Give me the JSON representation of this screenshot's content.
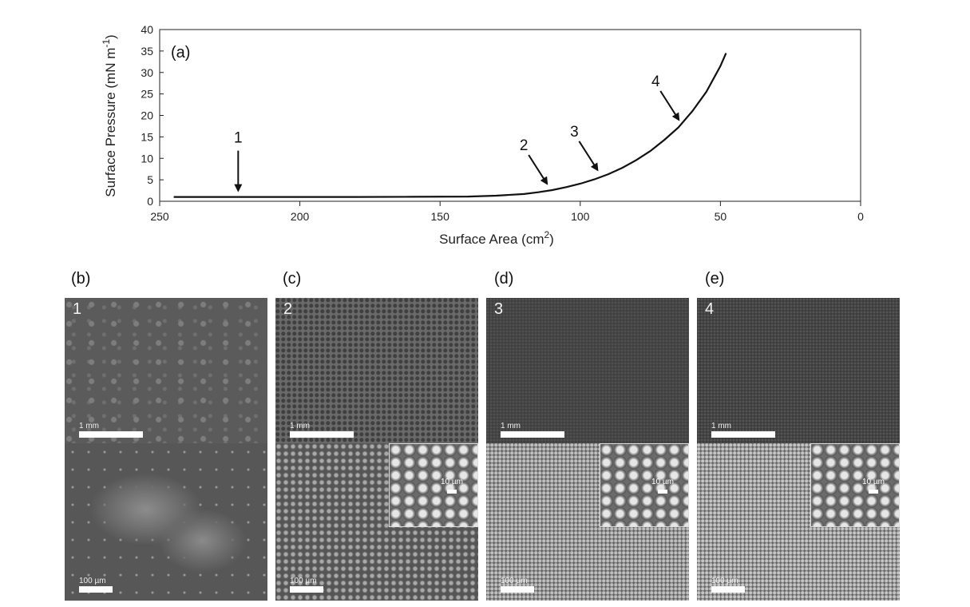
{
  "chart_data": {
    "type": "line",
    "panel_label": "(a)",
    "xlabel": "Surface Area (cm²)",
    "xlabel_base": "Surface Area (cm",
    "xlabel_sup": "2",
    "xlabel_end": ")",
    "ylabel": "Surface Pressure (mN m⁻¹)",
    "ylabel_base": "Surface Pressure  (mN m",
    "ylabel_sup": "-1",
    "ylabel_end": ")",
    "xlim": [
      250,
      0
    ],
    "ylim": [
      0,
      40
    ],
    "x_ticks": [
      250,
      200,
      150,
      100,
      50,
      0
    ],
    "y_ticks": [
      0,
      5,
      10,
      15,
      20,
      25,
      30,
      35,
      40
    ],
    "grid": false,
    "series": [
      {
        "x": [
          245,
          220,
          200,
          180,
          160,
          140,
          130,
          120,
          115,
          110,
          105,
          100,
          95,
          90,
          85,
          80,
          75,
          70,
          65,
          60,
          55,
          50,
          48
        ],
        "y": [
          1.0,
          1.0,
          1.0,
          1.0,
          1.05,
          1.1,
          1.3,
          1.7,
          2.1,
          2.6,
          3.3,
          4.1,
          5.1,
          6.3,
          7.8,
          9.6,
          11.7,
          14.3,
          17.2,
          21.0,
          25.5,
          31.5,
          34.5
        ]
      }
    ],
    "annotations": [
      {
        "label": "1",
        "x": 222,
        "y": 1.0
      },
      {
        "label": "2",
        "x": 111,
        "y": 2.6
      },
      {
        "label": "3",
        "x": 93,
        "y": 5.8
      },
      {
        "label": "4",
        "x": 64,
        "y": 17.5
      }
    ]
  },
  "panels": [
    {
      "letter": "(b)",
      "number": "1",
      "top_scale": "1 mm",
      "bottom_scale": "100 µm",
      "inset_scale": ""
    },
    {
      "letter": "(c)",
      "number": "2",
      "top_scale": "1 mm",
      "bottom_scale": "100 µm",
      "inset_scale": "10 µm"
    },
    {
      "letter": "(d)",
      "number": "3",
      "top_scale": "1 mm",
      "bottom_scale": "100 µm",
      "inset_scale": "10 µm"
    },
    {
      "letter": "(e)",
      "number": "4",
      "top_scale": "1 mm",
      "bottom_scale": "100 µm",
      "inset_scale": "10 µm"
    }
  ]
}
